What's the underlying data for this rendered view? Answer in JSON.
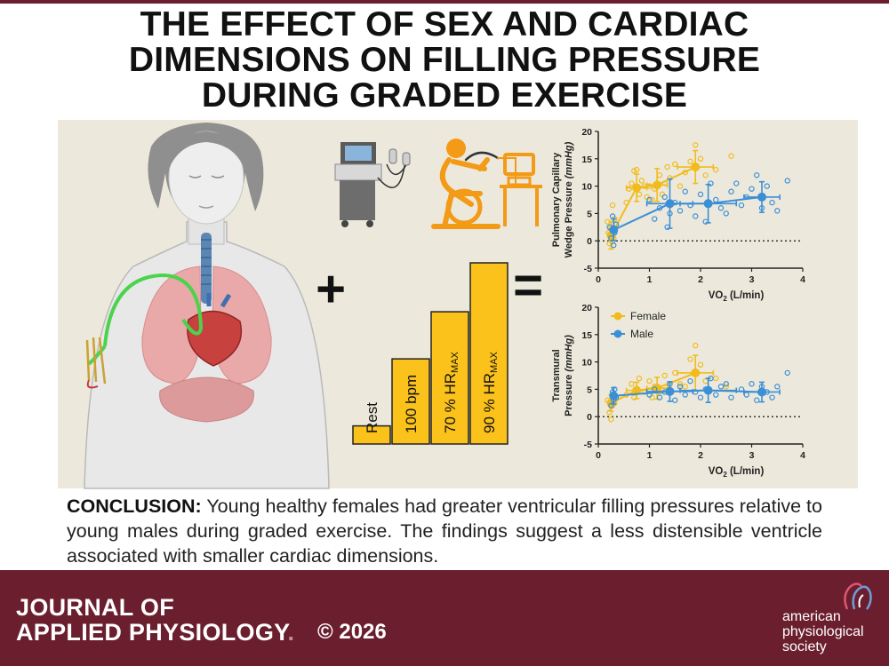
{
  "title_lines": [
    "THE EFFECT OF SEX AND CARDIAC",
    "DIMENSIONS ON FILLING PRESSURE",
    "DURING GRADED EXERCISE"
  ],
  "plus_symbol": "+",
  "equals_symbol": "=",
  "stages": [
    {
      "label": "Rest",
      "level": 0.1
    },
    {
      "label": "100 bpm",
      "level": 0.47
    },
    {
      "label": "70 % HR",
      "sub": "MAX",
      "level": 0.73
    },
    {
      "label": "90 % HR",
      "sub": "MAX",
      "level": 1.0
    }
  ],
  "conclusion": {
    "label": "CONCLUSION:",
    "text": "Young healthy females had greater ventricular filling pressures relative to young males during graded exercise. The findings suggest a less distensible ventricle associated with smaller cardiac dimensions."
  },
  "footer": {
    "journal_line1": "JOURNAL OF",
    "journal_line2": "APPLIED PHYSIOLOGY",
    "journal_mark": ".",
    "copyright": "© 2026",
    "society_lines": [
      "american",
      "physiological",
      "society"
    ]
  },
  "colors": {
    "female": "#f2bb1c",
    "male": "#3a8fd6",
    "footer": "#6b1f2e",
    "panel": "#ece9dc",
    "bar": "#fbc21b"
  },
  "chart_data": [
    {
      "type": "scatter",
      "ylabel_line1": "Pulmonary  Capillary",
      "ylabel_line2": "Wedge Pressure",
      "ylabel_unit": "(mmHg)",
      "xlabel": "VO",
      "xlabel_sub": "2",
      "xlabel_unit": " (L/min)",
      "xlim": [
        0,
        4
      ],
      "ylim": [
        -5,
        20
      ],
      "xticks": [
        "0",
        "1",
        "2",
        "3",
        "4"
      ],
      "yticks": [
        "-5",
        "0",
        "5",
        "10",
        "15",
        "20"
      ],
      "reference_line": 0,
      "series": [
        {
          "color": "#f2bb1c",
          "means": [
            [
              0.25,
              1.0
            ],
            [
              0.75,
              9.7
            ],
            [
              1.15,
              10.2
            ],
            [
              1.9,
              13.5
            ]
          ],
          "xerr": [
            0.05,
            0.2,
            0.2,
            0.35
          ],
          "yerr": [
            2.5,
            2.5,
            3.0,
            3.0
          ],
          "points": [
            [
              0.18,
              3.5
            ],
            [
              0.22,
              -0.5
            ],
            [
              0.25,
              2.5
            ],
            [
              0.28,
              6.5
            ],
            [
              0.3,
              0.5
            ],
            [
              0.32,
              4.0
            ],
            [
              0.2,
              1.5
            ],
            [
              0.27,
              -0.2
            ],
            [
              0.55,
              7.0
            ],
            [
              0.65,
              10.5
            ],
            [
              0.7,
              12.8
            ],
            [
              0.75,
              13.0
            ],
            [
              0.8,
              8.5
            ],
            [
              0.85,
              11.0
            ],
            [
              0.6,
              9.5
            ],
            [
              0.9,
              10.0
            ],
            [
              0.95,
              8.0
            ],
            [
              1.0,
              10.0
            ],
            [
              1.05,
              7.5
            ],
            [
              1.1,
              9.5
            ],
            [
              1.2,
              12.0
            ],
            [
              1.25,
              8.5
            ],
            [
              1.3,
              10.5
            ],
            [
              1.35,
              13.5
            ],
            [
              1.4,
              11.5
            ],
            [
              1.5,
              14.0
            ],
            [
              1.6,
              10.0
            ],
            [
              1.7,
              12.5
            ],
            [
              1.8,
              14.5
            ],
            [
              1.9,
              17.5
            ],
            [
              2.0,
              15.0
            ],
            [
              2.1,
              12.0
            ],
            [
              2.3,
              13.0
            ],
            [
              2.6,
              15.5
            ]
          ]
        },
        {
          "color": "#3a8fd6",
          "means": [
            [
              0.3,
              2.0
            ],
            [
              1.4,
              6.8
            ],
            [
              2.15,
              6.8
            ],
            [
              3.2,
              8.0
            ]
          ],
          "xerr": [
            0.05,
            0.45,
            0.55,
            0.35
          ],
          "yerr": [
            2.0,
            4.5,
            3.5,
            2.8
          ],
          "points": [
            [
              0.25,
              0.5
            ],
            [
              0.28,
              4.5
            ],
            [
              0.3,
              -0.8
            ],
            [
              0.32,
              1.5
            ],
            [
              0.35,
              3.0
            ],
            [
              0.22,
              2.5
            ],
            [
              1.0,
              7.5
            ],
            [
              1.1,
              4.0
            ],
            [
              1.2,
              6.0
            ],
            [
              1.3,
              8.0
            ],
            [
              1.35,
              2.5
            ],
            [
              1.4,
              5.0
            ],
            [
              1.5,
              7.0
            ],
            [
              1.6,
              5.5
            ],
            [
              1.7,
              9.0
            ],
            [
              1.8,
              6.5
            ],
            [
              1.9,
              4.5
            ],
            [
              2.0,
              8.5
            ],
            [
              2.1,
              3.5
            ],
            [
              2.2,
              10.5
            ],
            [
              2.3,
              7.5
            ],
            [
              2.4,
              6.0
            ],
            [
              2.5,
              5.0
            ],
            [
              2.6,
              9.0
            ],
            [
              2.7,
              10.5
            ],
            [
              2.8,
              6.5
            ],
            [
              2.9,
              8.0
            ],
            [
              3.0,
              9.5
            ],
            [
              3.1,
              12.0
            ],
            [
              3.2,
              6.0
            ],
            [
              3.3,
              10.0
            ],
            [
              3.4,
              7.0
            ],
            [
              3.5,
              5.5
            ],
            [
              3.7,
              11.0
            ]
          ]
        }
      ]
    },
    {
      "type": "scatter",
      "ylabel_line1": "Transmural",
      "ylabel_line2": "Pressure",
      "ylabel_unit": "(mmHg)",
      "xlabel": "VO",
      "xlabel_sub": "2",
      "xlabel_unit": " (L/min)",
      "xlim": [
        0,
        4
      ],
      "ylim": [
        -5,
        20
      ],
      "xticks": [
        "0",
        "1",
        "2",
        "3",
        "4"
      ],
      "yticks": [
        "-5",
        "0",
        "5",
        "10",
        "15",
        "20"
      ],
      "reference_line": 0,
      "legend": [
        "Female",
        "Male"
      ],
      "series": [
        {
          "name": "Female",
          "color": "#f2bb1c",
          "means": [
            [
              0.25,
              2.5
            ],
            [
              0.75,
              4.8
            ],
            [
              1.15,
              5.2
            ],
            [
              1.9,
              8.0
            ]
          ],
          "xerr": [
            0.05,
            0.2,
            0.2,
            0.35
          ],
          "yerr": [
            1.5,
            1.5,
            2.0,
            3.2
          ],
          "points": [
            [
              0.18,
              3.0
            ],
            [
              0.22,
              0.8
            ],
            [
              0.25,
              -0.5
            ],
            [
              0.28,
              2.0
            ],
            [
              0.3,
              4.0
            ],
            [
              0.32,
              2.5
            ],
            [
              0.55,
              4.0
            ],
            [
              0.65,
              6.0
            ],
            [
              0.7,
              3.5
            ],
            [
              0.75,
              5.0
            ],
            [
              0.8,
              7.0
            ],
            [
              0.9,
              4.5
            ],
            [
              1.0,
              6.5
            ],
            [
              1.05,
              3.5
            ],
            [
              1.1,
              5.5
            ],
            [
              1.2,
              4.5
            ],
            [
              1.3,
              7.5
            ],
            [
              1.4,
              5.0
            ],
            [
              1.5,
              8.0
            ],
            [
              1.6,
              6.0
            ],
            [
              1.7,
              5.5
            ],
            [
              1.8,
              10.5
            ],
            [
              1.9,
              13.0
            ],
            [
              2.0,
              9.5
            ],
            [
              2.1,
              6.5
            ],
            [
              2.3,
              7.0
            ],
            [
              2.5,
              5.5
            ]
          ]
        },
        {
          "name": "Male",
          "color": "#3a8fd6",
          "means": [
            [
              0.3,
              3.8
            ],
            [
              1.4,
              4.6
            ],
            [
              2.15,
              4.8
            ],
            [
              3.2,
              4.5
            ]
          ],
          "xerr": [
            0.05,
            0.45,
            0.55,
            0.35
          ],
          "yerr": [
            1.5,
            1.8,
            2.2,
            1.8
          ],
          "points": [
            [
              0.25,
              2.0
            ],
            [
              0.28,
              4.5
            ],
            [
              0.3,
              3.0
            ],
            [
              0.32,
              5.0
            ],
            [
              0.35,
              3.5
            ],
            [
              1.0,
              4.0
            ],
            [
              1.1,
              5.0
            ],
            [
              1.2,
              3.5
            ],
            [
              1.3,
              4.5
            ],
            [
              1.4,
              6.0
            ],
            [
              1.5,
              3.0
            ],
            [
              1.6,
              5.5
            ],
            [
              1.7,
              4.0
            ],
            [
              1.8,
              6.5
            ],
            [
              1.9,
              4.5
            ],
            [
              2.0,
              3.5
            ],
            [
              2.1,
              5.0
            ],
            [
              2.2,
              7.0
            ],
            [
              2.3,
              4.0
            ],
            [
              2.4,
              5.5
            ],
            [
              2.5,
              6.0
            ],
            [
              2.6,
              3.5
            ],
            [
              2.8,
              5.0
            ],
            [
              2.9,
              4.0
            ],
            [
              3.0,
              6.0
            ],
            [
              3.1,
              3.0
            ],
            [
              3.2,
              5.5
            ],
            [
              3.3,
              4.5
            ],
            [
              3.4,
              3.5
            ],
            [
              3.5,
              5.5
            ],
            [
              3.7,
              8.0
            ]
          ]
        }
      ]
    }
  ]
}
